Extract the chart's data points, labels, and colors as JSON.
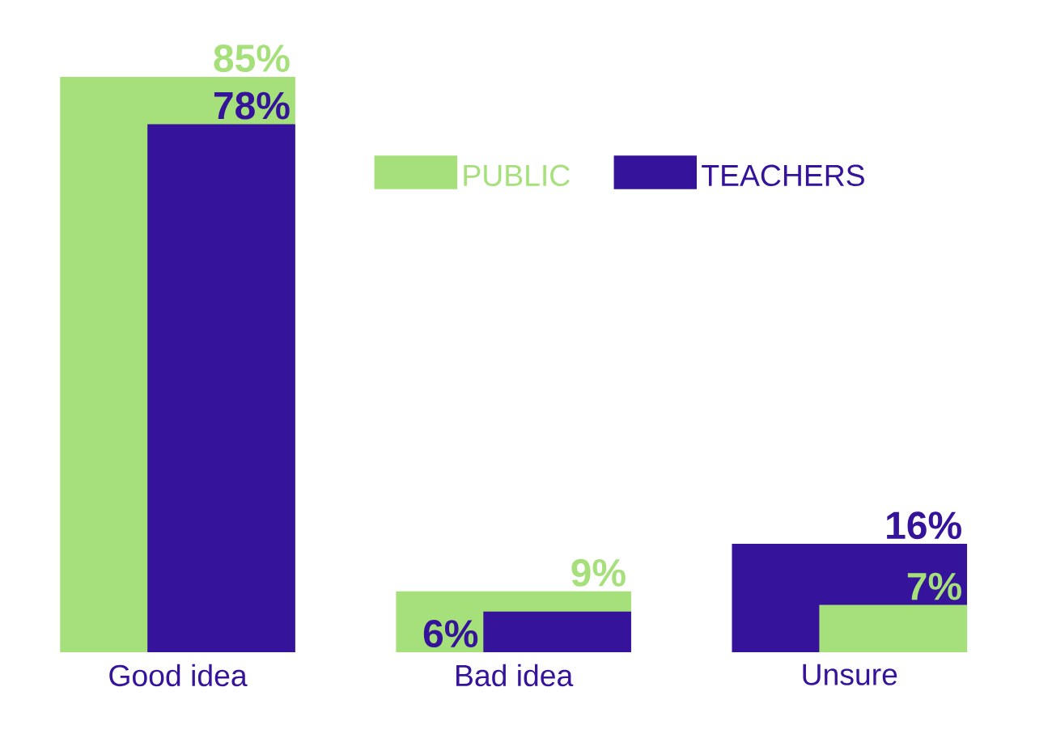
{
  "chart_data": {
    "type": "bar",
    "categories": [
      "Good idea",
      "Bad idea",
      "Unsure"
    ],
    "series": [
      {
        "name": "PUBLIC",
        "color": "#a6e07a",
        "values": [
          85,
          9,
          7
        ],
        "value_labels": [
          "85%",
          "9%",
          "7%"
        ]
      },
      {
        "name": "TEACHERS",
        "color": "#35139a",
        "values": [
          78,
          6,
          16
        ],
        "value_labels": [
          "78%",
          "6%",
          "16%"
        ]
      }
    ],
    "legend": "top right"
  }
}
